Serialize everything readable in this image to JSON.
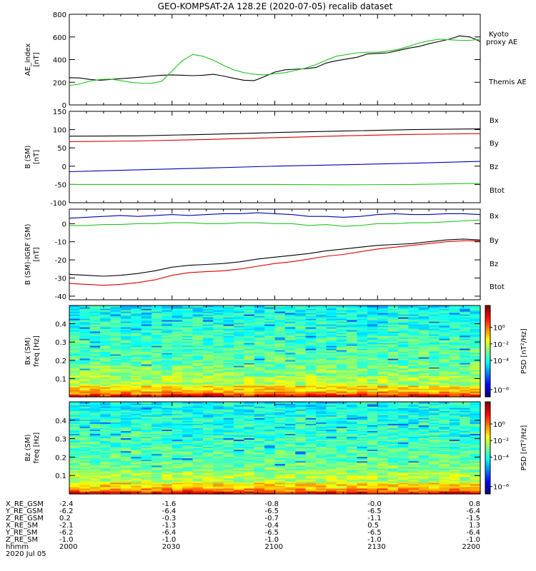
{
  "chart_data": {
    "title": "GEO-KOMPSAT-2A 128.2E (2020-07-05) recalib dataset",
    "time": {
      "labels": [
        "2000",
        "2030",
        "2100",
        "2130",
        "2200"
      ],
      "hhmm_label": "hhmm",
      "date_label": "2020 Jul 05"
    },
    "panels": [
      {
        "type": "line",
        "ylabel_main": "AE_index",
        "ylabel_unit": "[nT]",
        "ylim": [
          0,
          800
        ],
        "yticks": [
          0,
          200,
          400,
          600,
          800
        ],
        "legend": [
          {
            "label": "Kyoto",
            "color": "#22c422"
          },
          {
            "label": "proxy AE",
            "color": "#22c422"
          },
          {
            "label": "Themis AE",
            "color": "#000000"
          }
        ],
        "series": [
          {
            "name": "Themis AE",
            "color": "#000000",
            "x": [
              0,
              3,
              6,
              9,
              12,
              15,
              18,
              21,
              24,
              27,
              30,
              33,
              36,
              39,
              42,
              45,
              48,
              51,
              54,
              57,
              60,
              63,
              66,
              69,
              72,
              75,
              78,
              81,
              84,
              87,
              90,
              93,
              96,
              99,
              102,
              105,
              108,
              111,
              114,
              117,
              120
            ],
            "y": [
              240,
              238,
              225,
              218,
              225,
              232,
              238,
              245,
              255,
              262,
              265,
              262,
              258,
              262,
              270,
              255,
              235,
              218,
              215,
              250,
              290,
              310,
              315,
              320,
              330,
              370,
              390,
              405,
              420,
              450,
              455,
              460,
              480,
              500,
              515,
              540,
              560,
              580,
              610,
              600,
              560
            ]
          },
          {
            "name": "Kyoto proxy AE",
            "color": "#22c422",
            "x": [
              0,
              3,
              6,
              9,
              12,
              15,
              18,
              21,
              24,
              27,
              30,
              33,
              36,
              39,
              42,
              45,
              48,
              51,
              54,
              57,
              60,
              63,
              66,
              69,
              72,
              75,
              78,
              81,
              84,
              87,
              90,
              93,
              96,
              99,
              102,
              105,
              108,
              111,
              114,
              117,
              120
            ],
            "y": [
              170,
              185,
              210,
              225,
              228,
              215,
              200,
              192,
              190,
              210,
              300,
              390,
              445,
              430,
              395,
              350,
              310,
              285,
              270,
              265,
              275,
              285,
              305,
              325,
              355,
              395,
              430,
              445,
              460,
              465,
              465,
              475,
              490,
              515,
              545,
              565,
              580,
              575,
              570,
              570,
              580
            ]
          }
        ]
      },
      {
        "type": "line",
        "ylabel_main": "B (SM)",
        "ylabel_unit": "[nT]",
        "ylim": [
          -100,
          150
        ],
        "yticks": [
          -100,
          -50,
          0,
          50,
          100,
          150
        ],
        "legend": [
          {
            "label": "Bx",
            "color": "#0000b4"
          },
          {
            "label": "By",
            "color": "#22c422"
          },
          {
            "label": "Bz",
            "color": "#dc0000"
          },
          {
            "label": "Btot",
            "color": "#000000"
          }
        ],
        "series": [
          {
            "name": "Btot",
            "color": "#000000",
            "x": [
              0,
              20,
              40,
              60,
              80,
              100,
              120
            ],
            "y": [
              82,
              83,
              87,
              92,
              96,
              100,
              102
            ]
          },
          {
            "name": "Bz",
            "color": "#dc0000",
            "x": [
              0,
              20,
              40,
              60,
              80,
              100,
              120
            ],
            "y": [
              67,
              69,
              73,
              78,
              83,
              87,
              89
            ]
          },
          {
            "name": "Bx",
            "color": "#0000b4",
            "x": [
              0,
              20,
              40,
              60,
              80,
              100,
              120
            ],
            "y": [
              -15,
              -10,
              -5,
              0,
              4,
              8,
              13
            ]
          },
          {
            "name": "By",
            "color": "#22c422",
            "x": [
              0,
              20,
              40,
              60,
              80,
              100,
              120
            ],
            "y": [
              -50,
              -50,
              -50,
              -50,
              -51,
              -50,
              -47
            ]
          }
        ]
      },
      {
        "type": "line",
        "ylabel_main": "B (SM)-IGRF (SM)",
        "ylabel_unit": "[nT]",
        "ylim": [
          -42,
          8
        ],
        "yticks": [
          -40,
          -30,
          -20,
          -10,
          0
        ],
        "legend": [
          {
            "label": "Bx",
            "color": "#0000b4"
          },
          {
            "label": "By",
            "color": "#22c422"
          },
          {
            "label": "Bz",
            "color": "#dc0000"
          },
          {
            "label": "Btot",
            "color": "#000000"
          }
        ],
        "series": [
          {
            "name": "Bx",
            "color": "#0000b4",
            "x": [
              0,
              5,
              10,
              15,
              20,
              25,
              30,
              35,
              40,
              45,
              50,
              55,
              60,
              65,
              70,
              75,
              80,
              85,
              90,
              95,
              100,
              105,
              110,
              115,
              120
            ],
            "y": [
              3,
              3.5,
              4,
              4.5,
              4,
              4.5,
              5,
              4.5,
              5,
              5.5,
              5.5,
              6,
              5.5,
              5,
              4,
              4,
              3.5,
              4,
              5,
              5.5,
              5,
              5,
              5.5,
              5.5,
              5
            ]
          },
          {
            "name": "By",
            "color": "#22c422",
            "x": [
              0,
              5,
              10,
              15,
              20,
              25,
              30,
              35,
              40,
              45,
              50,
              55,
              60,
              65,
              70,
              75,
              80,
              85,
              90,
              95,
              100,
              105,
              110,
              115,
              120
            ],
            "y": [
              -1,
              -1,
              -0.5,
              -0.5,
              0,
              0,
              0.5,
              0.5,
              0,
              0,
              0.5,
              0.5,
              0,
              0,
              -1,
              -0.5,
              -1.5,
              -1,
              0,
              0,
              0.5,
              0.5,
              1,
              1.5,
              2
            ]
          },
          {
            "name": "Btot",
            "color": "#000000",
            "x": [
              0,
              5,
              10,
              15,
              20,
              25,
              30,
              35,
              40,
              45,
              50,
              55,
              60,
              65,
              70,
              75,
              80,
              85,
              90,
              95,
              100,
              105,
              110,
              115,
              120
            ],
            "y": [
              -28,
              -28.5,
              -29,
              -28.5,
              -27.5,
              -26,
              -24,
              -23,
              -22.5,
              -22,
              -21,
              -19.5,
              -18.5,
              -17.5,
              -16.5,
              -15,
              -14,
              -13,
              -12,
              -11.5,
              -11,
              -10,
              -9,
              -8.5,
              -9
            ]
          },
          {
            "name": "Bz",
            "color": "#dc0000",
            "x": [
              0,
              5,
              10,
              15,
              20,
              25,
              30,
              35,
              40,
              45,
              50,
              55,
              60,
              65,
              70,
              75,
              80,
              85,
              90,
              95,
              100,
              105,
              110,
              115,
              120
            ],
            "y": [
              -33,
              -33.5,
              -34,
              -33.5,
              -32.5,
              -31,
              -28.5,
              -27,
              -26.5,
              -26,
              -25,
              -23.5,
              -22,
              -21,
              -19.5,
              -18,
              -17,
              -15.5,
              -14,
              -13,
              -12,
              -11,
              -10,
              -9.5,
              -9.5
            ]
          }
        ]
      },
      {
        "type": "heatmap",
        "ylabel_main": "Bx (SM)",
        "ylabel_unit": "freq [Hz]",
        "ylim": [
          0,
          0.5
        ],
        "yticks": [
          0.1,
          0.2,
          0.3,
          0.4
        ],
        "ytick_labels": [
          "0.1",
          "0.2",
          "0.3",
          "0.4"
        ]
      },
      {
        "type": "heatmap",
        "ylabel_main": "Bz (SM)",
        "ylabel_unit": "freq [Hz]",
        "ylim": [
          0,
          0.5
        ],
        "yticks": [
          0.1,
          0.2,
          0.3,
          0.4
        ],
        "ytick_labels": [
          "0.1",
          "0.2",
          "0.3",
          "0.4"
        ]
      }
    ],
    "colorbar": {
      "label": "PSD",
      "unit": "[nT²/Hz]",
      "ticks": [
        "10⁰",
        "10⁻²",
        "10⁻⁴",
        "10⁻⁶"
      ]
    },
    "ephemeris": [
      {
        "label": "X_RE_GSM",
        "values": [
          "-2.4",
          "-1.6",
          "-0.8",
          "-0.0",
          "0.8"
        ]
      },
      {
        "label": "Y_RE_GSM",
        "values": [
          "-6.2",
          "-6.4",
          "-6.5",
          "-6.5",
          "-6.4"
        ]
      },
      {
        "label": "Z_RE_GSM",
        "values": [
          "0.2",
          "-0.3",
          "-0.7",
          "-1.1",
          "-1.5"
        ]
      },
      {
        "label": "X_RE_SM",
        "values": [
          "-2.1",
          "-1.3",
          "-0.4",
          "0.5",
          "1.3"
        ]
      },
      {
        "label": "Y_RE_SM",
        "values": [
          "-6.2",
          "-6.4",
          "-6.5",
          "-6.5",
          "-6.4"
        ]
      },
      {
        "label": "Z_RE_SM",
        "values": [
          "-1.0",
          "-1.0",
          "-1.0",
          "-1.0",
          "-1.0"
        ]
      }
    ]
  }
}
